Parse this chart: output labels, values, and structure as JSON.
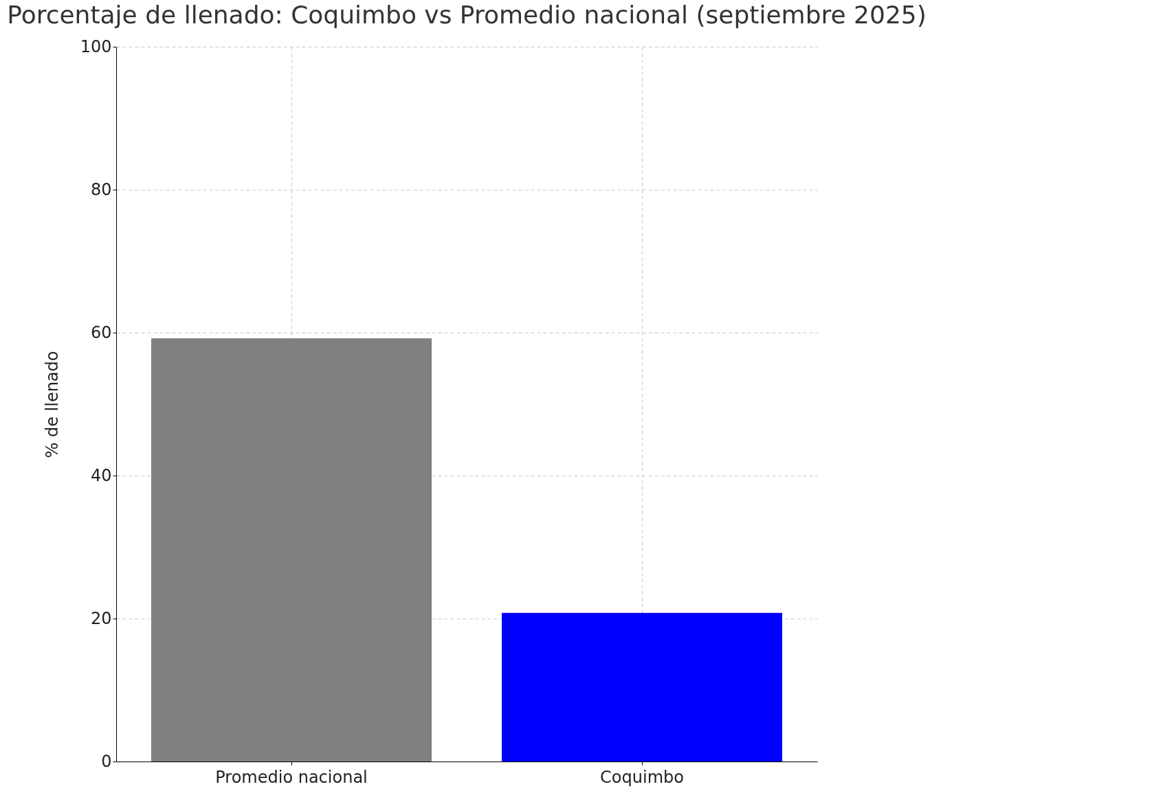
{
  "chart_data": {
    "type": "bar",
    "title": "Porcentaje de llenado: Coquimbo vs Promedio nacional (septiembre 2025)",
    "ylabel": "% de llenado",
    "categories": [
      "Promedio nacional",
      "Coquimbo"
    ],
    "values": [
      59.2,
      20.8
    ],
    "colors": [
      "#808080",
      "#0000ff"
    ],
    "ylim": [
      0,
      100
    ],
    "yticks": [
      0,
      20,
      40,
      60,
      80,
      100
    ],
    "grid": true
  }
}
